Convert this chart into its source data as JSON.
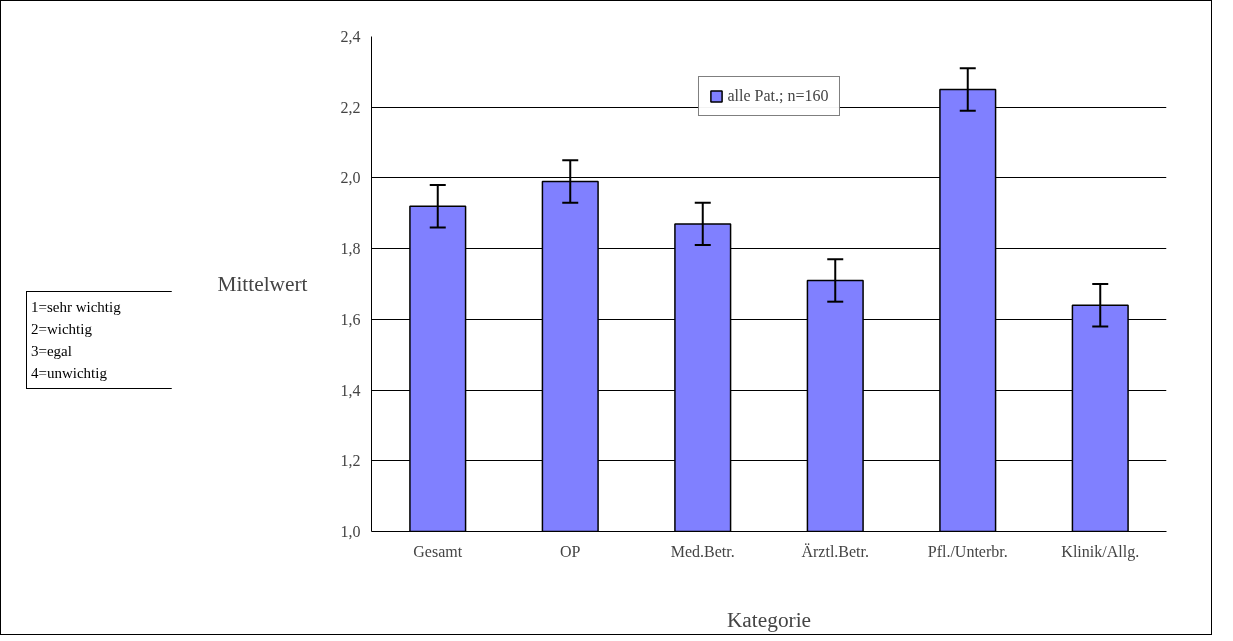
{
  "chart_data": {
    "type": "bar",
    "xlabel": "Kategorie",
    "ylabel": "Mittelwert",
    "categories": [
      "Gesamt",
      "OP",
      "Med.Betr.",
      "Ärztl.Betr.",
      "Pfl./Unterbr.",
      "Klinik/Allg."
    ],
    "series": [
      {
        "name": "alle Pat.; n=160",
        "color": "#8080ff",
        "values": [
          1.92,
          1.99,
          1.87,
          1.71,
          2.25,
          1.64
        ],
        "errors": [
          0.06,
          0.06,
          0.06,
          0.06,
          0.06,
          0.06
        ]
      }
    ],
    "ylim": [
      1.0,
      2.4
    ],
    "yticks": [
      {
        "value": 1.0,
        "label": "1,0"
      },
      {
        "value": 1.2,
        "label": "1,2"
      },
      {
        "value": 1.4,
        "label": "1,4"
      },
      {
        "value": 1.6,
        "label": "1,6"
      },
      {
        "value": 1.8,
        "label": "1,8"
      },
      {
        "value": 2.0,
        "label": "2,0"
      },
      {
        "value": 2.2,
        "label": "2,2"
      },
      {
        "value": 2.4,
        "label": "2,4"
      }
    ],
    "grid": "y",
    "legend": "top",
    "annotations": [
      "1=sehr wichtig\n2=wichtig\n3=egal\n4=unwichtig"
    ]
  }
}
